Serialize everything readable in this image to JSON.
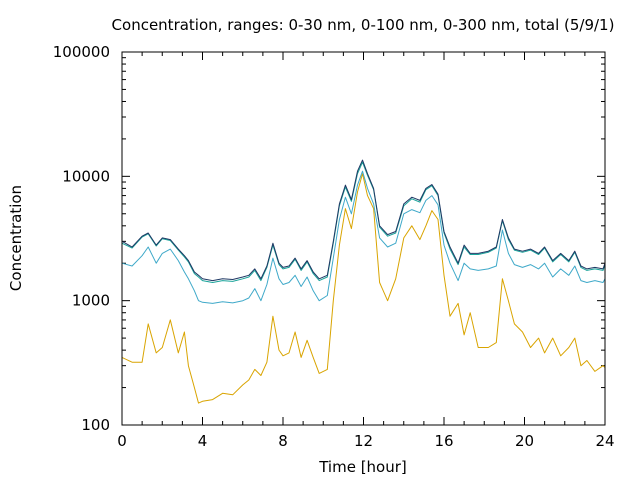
{
  "chart_data": {
    "type": "line",
    "title": "Concentration, ranges: 0-30 nm, 0-100 nm, 0-300 nm, total (5/9/1)",
    "xlabel": "Time [hour]",
    "ylabel": "Concentration",
    "xlim": [
      0,
      24
    ],
    "ylim": [
      100,
      100000
    ],
    "yscale": "log",
    "grid": false,
    "x_ticks": [
      0,
      4,
      8,
      12,
      16,
      20,
      24
    ],
    "x_tick_labels": [
      "0",
      "4",
      "8",
      "12",
      "16",
      "20",
      "24"
    ],
    "y_ticks": [
      100,
      1000,
      10000,
      100000
    ],
    "y_tick_labels": [
      "100",
      "1000",
      "10000",
      "100000"
    ],
    "x": [
      0,
      0.5,
      1,
      1.3,
      1.7,
      2,
      2.4,
      2.8,
      3.1,
      3.3,
      3.6,
      3.8,
      4,
      4.5,
      5,
      5.5,
      6,
      6.3,
      6.6,
      6.9,
      7.2,
      7.5,
      7.8,
      8,
      8.3,
      8.6,
      8.9,
      9.2,
      9.5,
      9.8,
      10.2,
      10.5,
      10.8,
      11.1,
      11.4,
      11.7,
      11.95,
      12.2,
      12.5,
      12.8,
      13.2,
      13.6,
      14,
      14.4,
      14.8,
      15.1,
      15.4,
      15.7,
      16,
      16.3,
      16.7,
      17,
      17.3,
      17.7,
      18.2,
      18.6,
      18.9,
      19.2,
      19.5,
      19.9,
      20.3,
      20.7,
      21,
      21.4,
      21.8,
      22.2,
      22.5,
      22.8,
      23.1,
      23.5,
      23.9,
      24
    ],
    "series": [
      {
        "color": "#1f3864",
        "values": [
          3000,
          2700,
          3300,
          3500,
          2800,
          3200,
          3100,
          2600,
          2300,
          2100,
          1700,
          1600,
          1500,
          1450,
          1500,
          1480,
          1550,
          1600,
          1800,
          1500,
          1900,
          2900,
          2000,
          1850,
          1900,
          2200,
          1800,
          2100,
          1700,
          1500,
          1600,
          3000,
          6000,
          8500,
          6500,
          11000,
          13500,
          10500,
          8000,
          4000,
          3400,
          3600,
          6000,
          6800,
          6400,
          8000,
          8600,
          7200,
          3600,
          2700,
          2000,
          2800,
          2400,
          2400,
          2500,
          2700,
          4500,
          3200,
          2600,
          2500,
          2600,
          2400,
          2700,
          2100,
          2400,
          2100,
          2500,
          1900,
          1800,
          1850,
          1800,
          2000
        ]
      },
      {
        "color": "#1aa39a",
        "values": [
          2900,
          2650,
          3250,
          3450,
          2750,
          3150,
          3050,
          2550,
          2250,
          2050,
          1650,
          1550,
          1450,
          1400,
          1450,
          1430,
          1500,
          1550,
          1750,
          1450,
          1850,
          2800,
          1950,
          1800,
          1850,
          2150,
          1750,
          2050,
          1650,
          1450,
          1550,
          2900,
          5800,
          8200,
          6300,
          10500,
          13000,
          10200,
          7800,
          3900,
          3300,
          3500,
          5800,
          6600,
          6200,
          7800,
          8400,
          7000,
          3500,
          2600,
          1950,
          2700,
          2350,
          2350,
          2450,
          2650,
          4400,
          3100,
          2550,
          2450,
          2550,
          2350,
          2650,
          2050,
          2350,
          2050,
          2450,
          1850,
          1750,
          1800,
          1750,
          1950
        ]
      },
      {
        "color": "#3fa9c9",
        "values": [
          2000,
          1900,
          2300,
          2700,
          2000,
          2400,
          2600,
          2100,
          1700,
          1500,
          1200,
          1000,
          970,
          950,
          980,
          960,
          1000,
          1050,
          1250,
          1000,
          1350,
          2200,
          1500,
          1350,
          1400,
          1600,
          1300,
          1550,
          1200,
          1000,
          1100,
          2200,
          4500,
          6800,
          5000,
          8500,
          11000,
          8000,
          6000,
          3200,
          2700,
          2900,
          5000,
          5400,
          5100,
          6400,
          7000,
          5900,
          2800,
          2000,
          1450,
          2000,
          1800,
          1750,
          1800,
          1900,
          3700,
          2400,
          1950,
          1850,
          1950,
          1800,
          2000,
          1550,
          1800,
          1600,
          1900,
          1450,
          1400,
          1450,
          1400,
          1500
        ]
      },
      {
        "color": "#d9a400",
        "values": [
          350,
          320,
          320,
          650,
          380,
          420,
          700,
          380,
          560,
          300,
          200,
          150,
          155,
          160,
          180,
          175,
          210,
          230,
          280,
          250,
          320,
          750,
          400,
          360,
          380,
          560,
          350,
          480,
          350,
          260,
          280,
          1000,
          2800,
          5500,
          3800,
          7500,
          10500,
          7000,
          5500,
          1400,
          1000,
          1500,
          3200,
          4000,
          3100,
          4000,
          5300,
          4500,
          1600,
          750,
          950,
          530,
          800,
          420,
          420,
          460,
          1500,
          1000,
          650,
          560,
          420,
          500,
          380,
          500,
          360,
          420,
          500,
          300,
          330,
          270,
          300,
          290
        ]
      }
    ]
  }
}
